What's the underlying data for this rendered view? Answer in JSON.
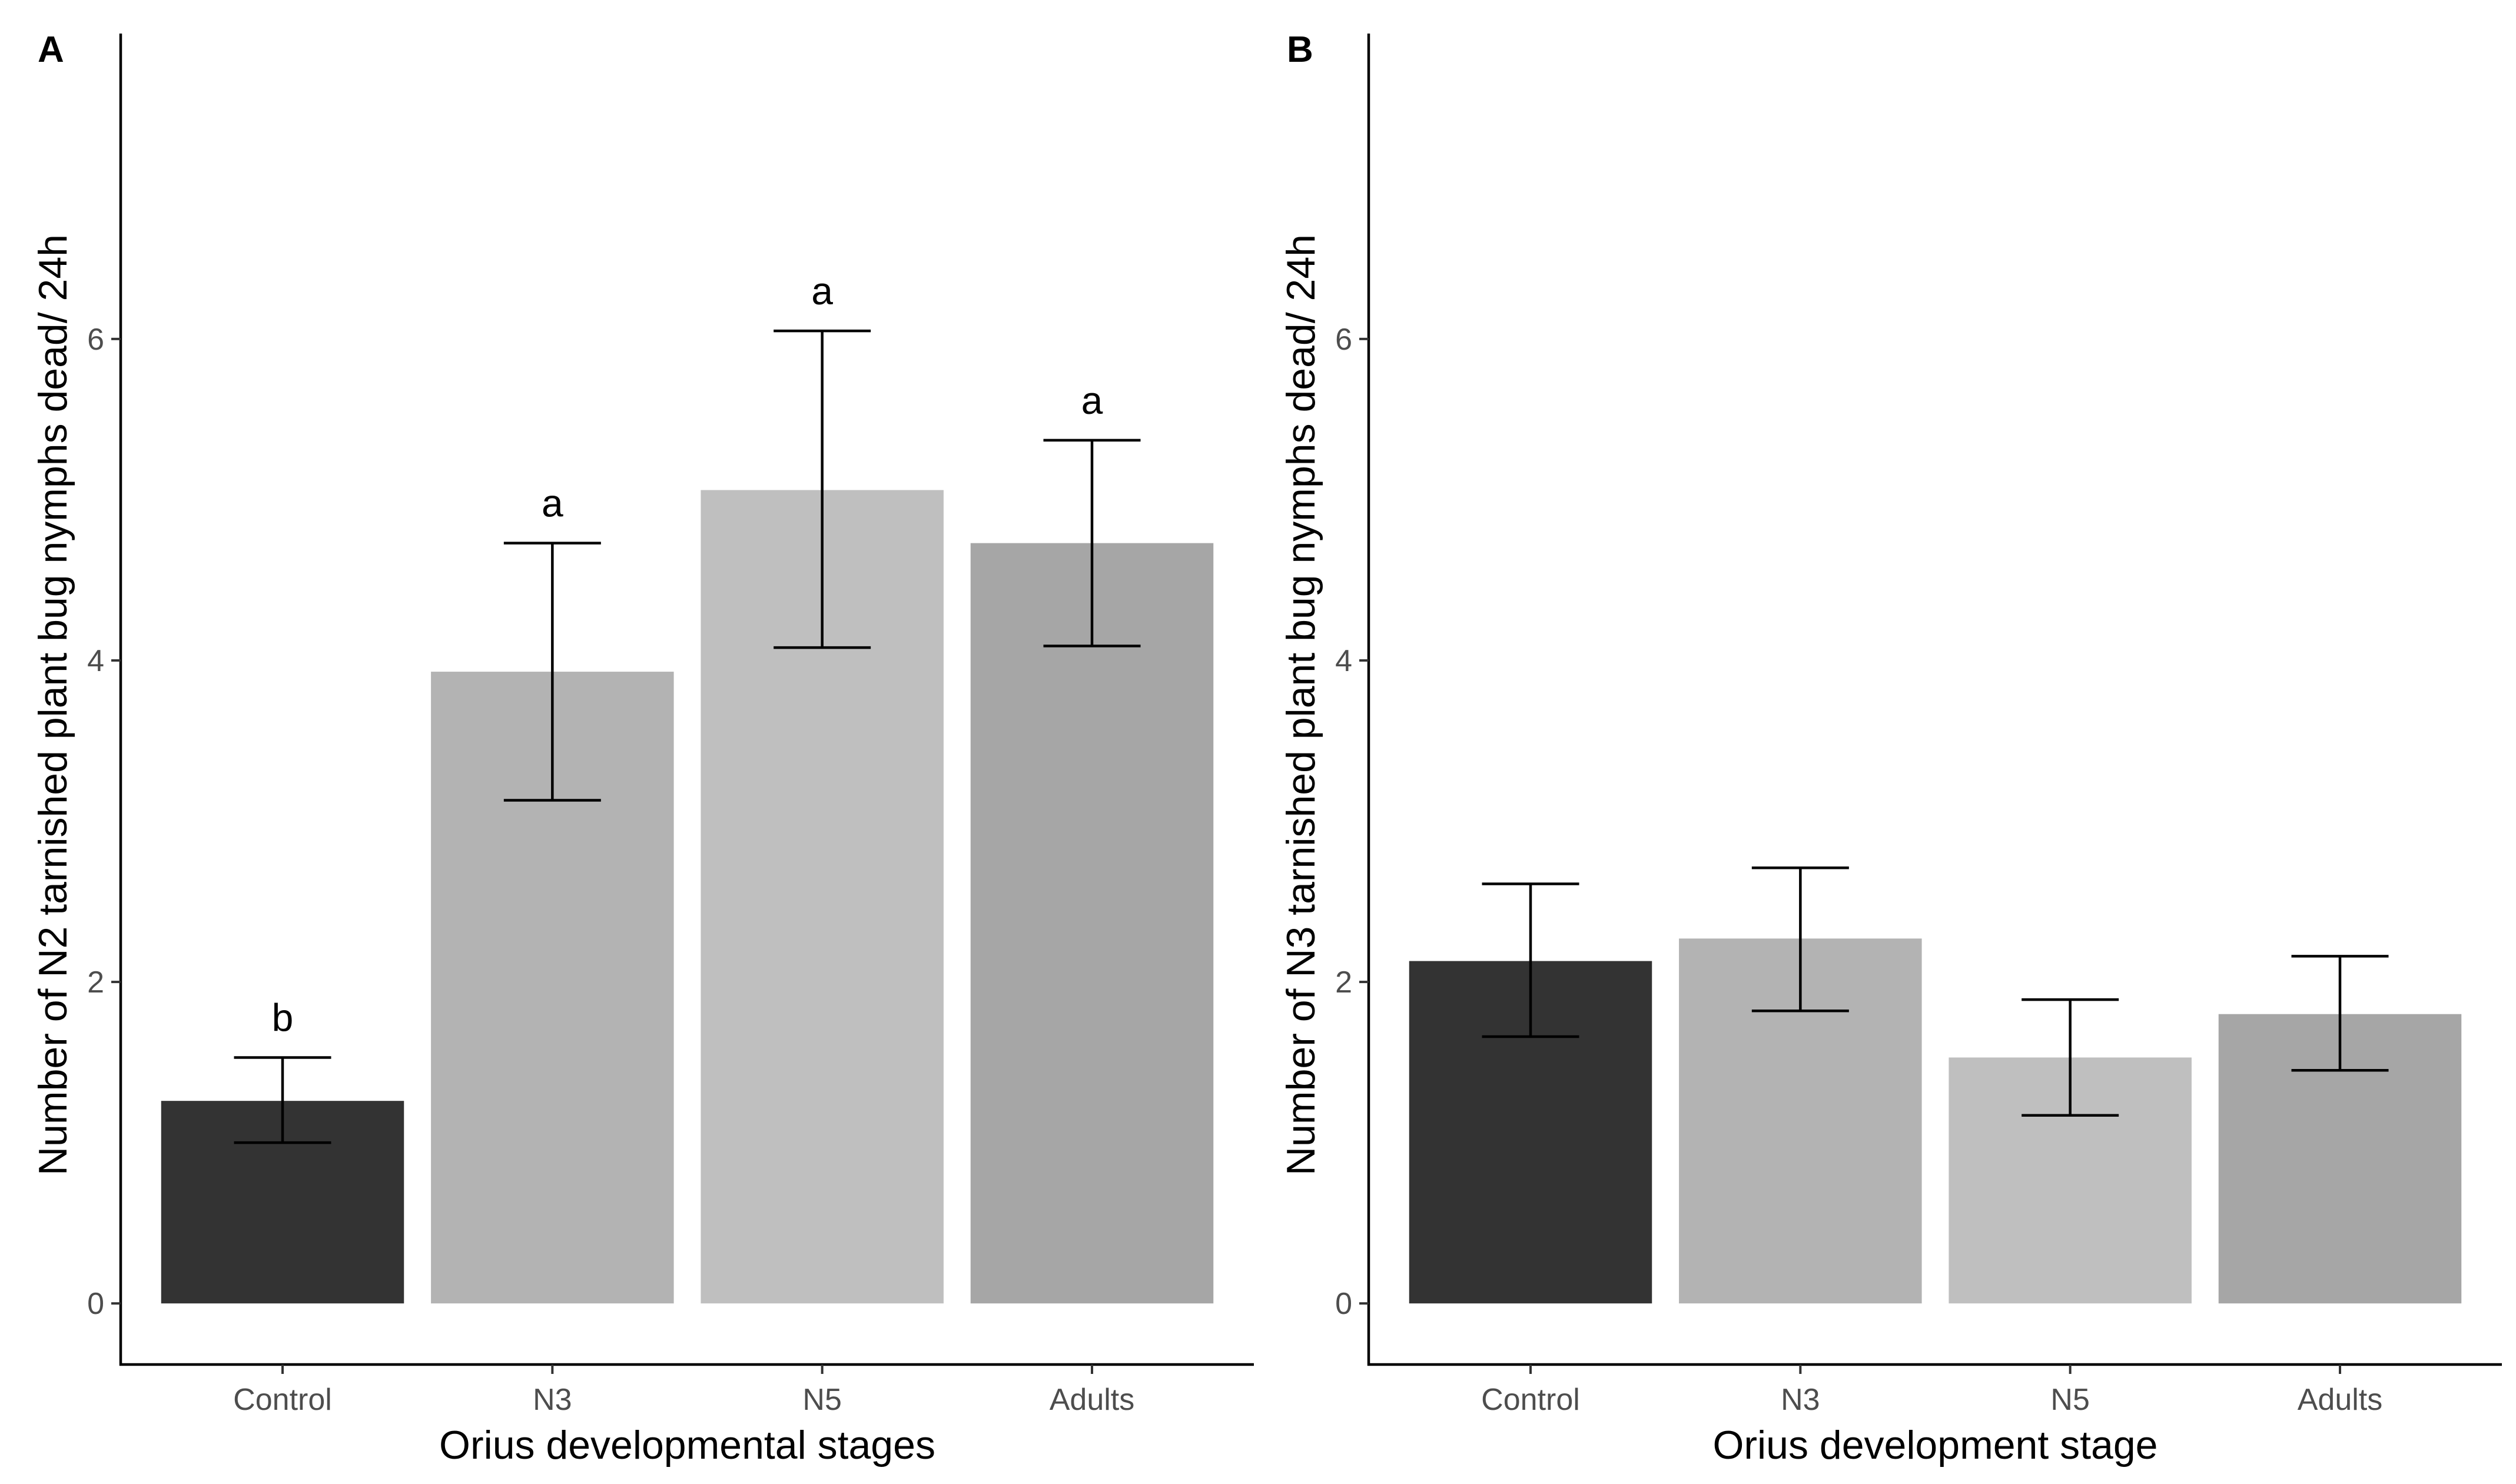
{
  "chart_data": [
    {
      "type": "bar",
      "panel_label": "A",
      "categories": [
        "Control",
        "N3",
        "N5",
        "Adults"
      ],
      "values": [
        1.26,
        3.93,
        5.06,
        4.73
      ],
      "error_low": [
        1.0,
        3.13,
        4.08,
        4.09
      ],
      "error_high": [
        1.53,
        4.73,
        6.05,
        5.37
      ],
      "significance": [
        "b",
        "a",
        "a",
        "a"
      ],
      "bar_colors": [
        "#333333",
        "#b3b3b3",
        "#bfbfbf",
        "#a6a6a6"
      ],
      "title": "",
      "xlabel": "Orius developmental stages",
      "ylabel": "Number of N2 tarnished plant bug nymphs dead/ 24h",
      "ylim": [
        -0.38,
        7.9
      ],
      "yticks": [
        0,
        2,
        4,
        6
      ],
      "ytick_labels": [
        "0",
        "2",
        "4",
        "6"
      ],
      "grid": false
    },
    {
      "type": "bar",
      "panel_label": "B",
      "categories": [
        "Control",
        "N3",
        "N5",
        "Adults"
      ],
      "values": [
        2.13,
        2.27,
        1.53,
        1.8
      ],
      "error_low": [
        1.66,
        1.82,
        1.17,
        1.45
      ],
      "error_high": [
        2.61,
        2.71,
        1.89,
        2.16
      ],
      "significance": [
        "",
        "",
        "",
        ""
      ],
      "bar_colors": [
        "#333333",
        "#b3b3b3",
        "#bfbfbf",
        "#a6a6a6"
      ],
      "title": "",
      "xlabel": "Orius development stage",
      "ylabel": "Number of N3 tarnished plant bug nymphs dead/ 24h",
      "ylim": [
        -0.38,
        7.9
      ],
      "yticks": [
        0,
        2,
        4,
        6
      ],
      "ytick_labels": [
        "0",
        "2",
        "4",
        "6"
      ],
      "grid": false
    }
  ]
}
